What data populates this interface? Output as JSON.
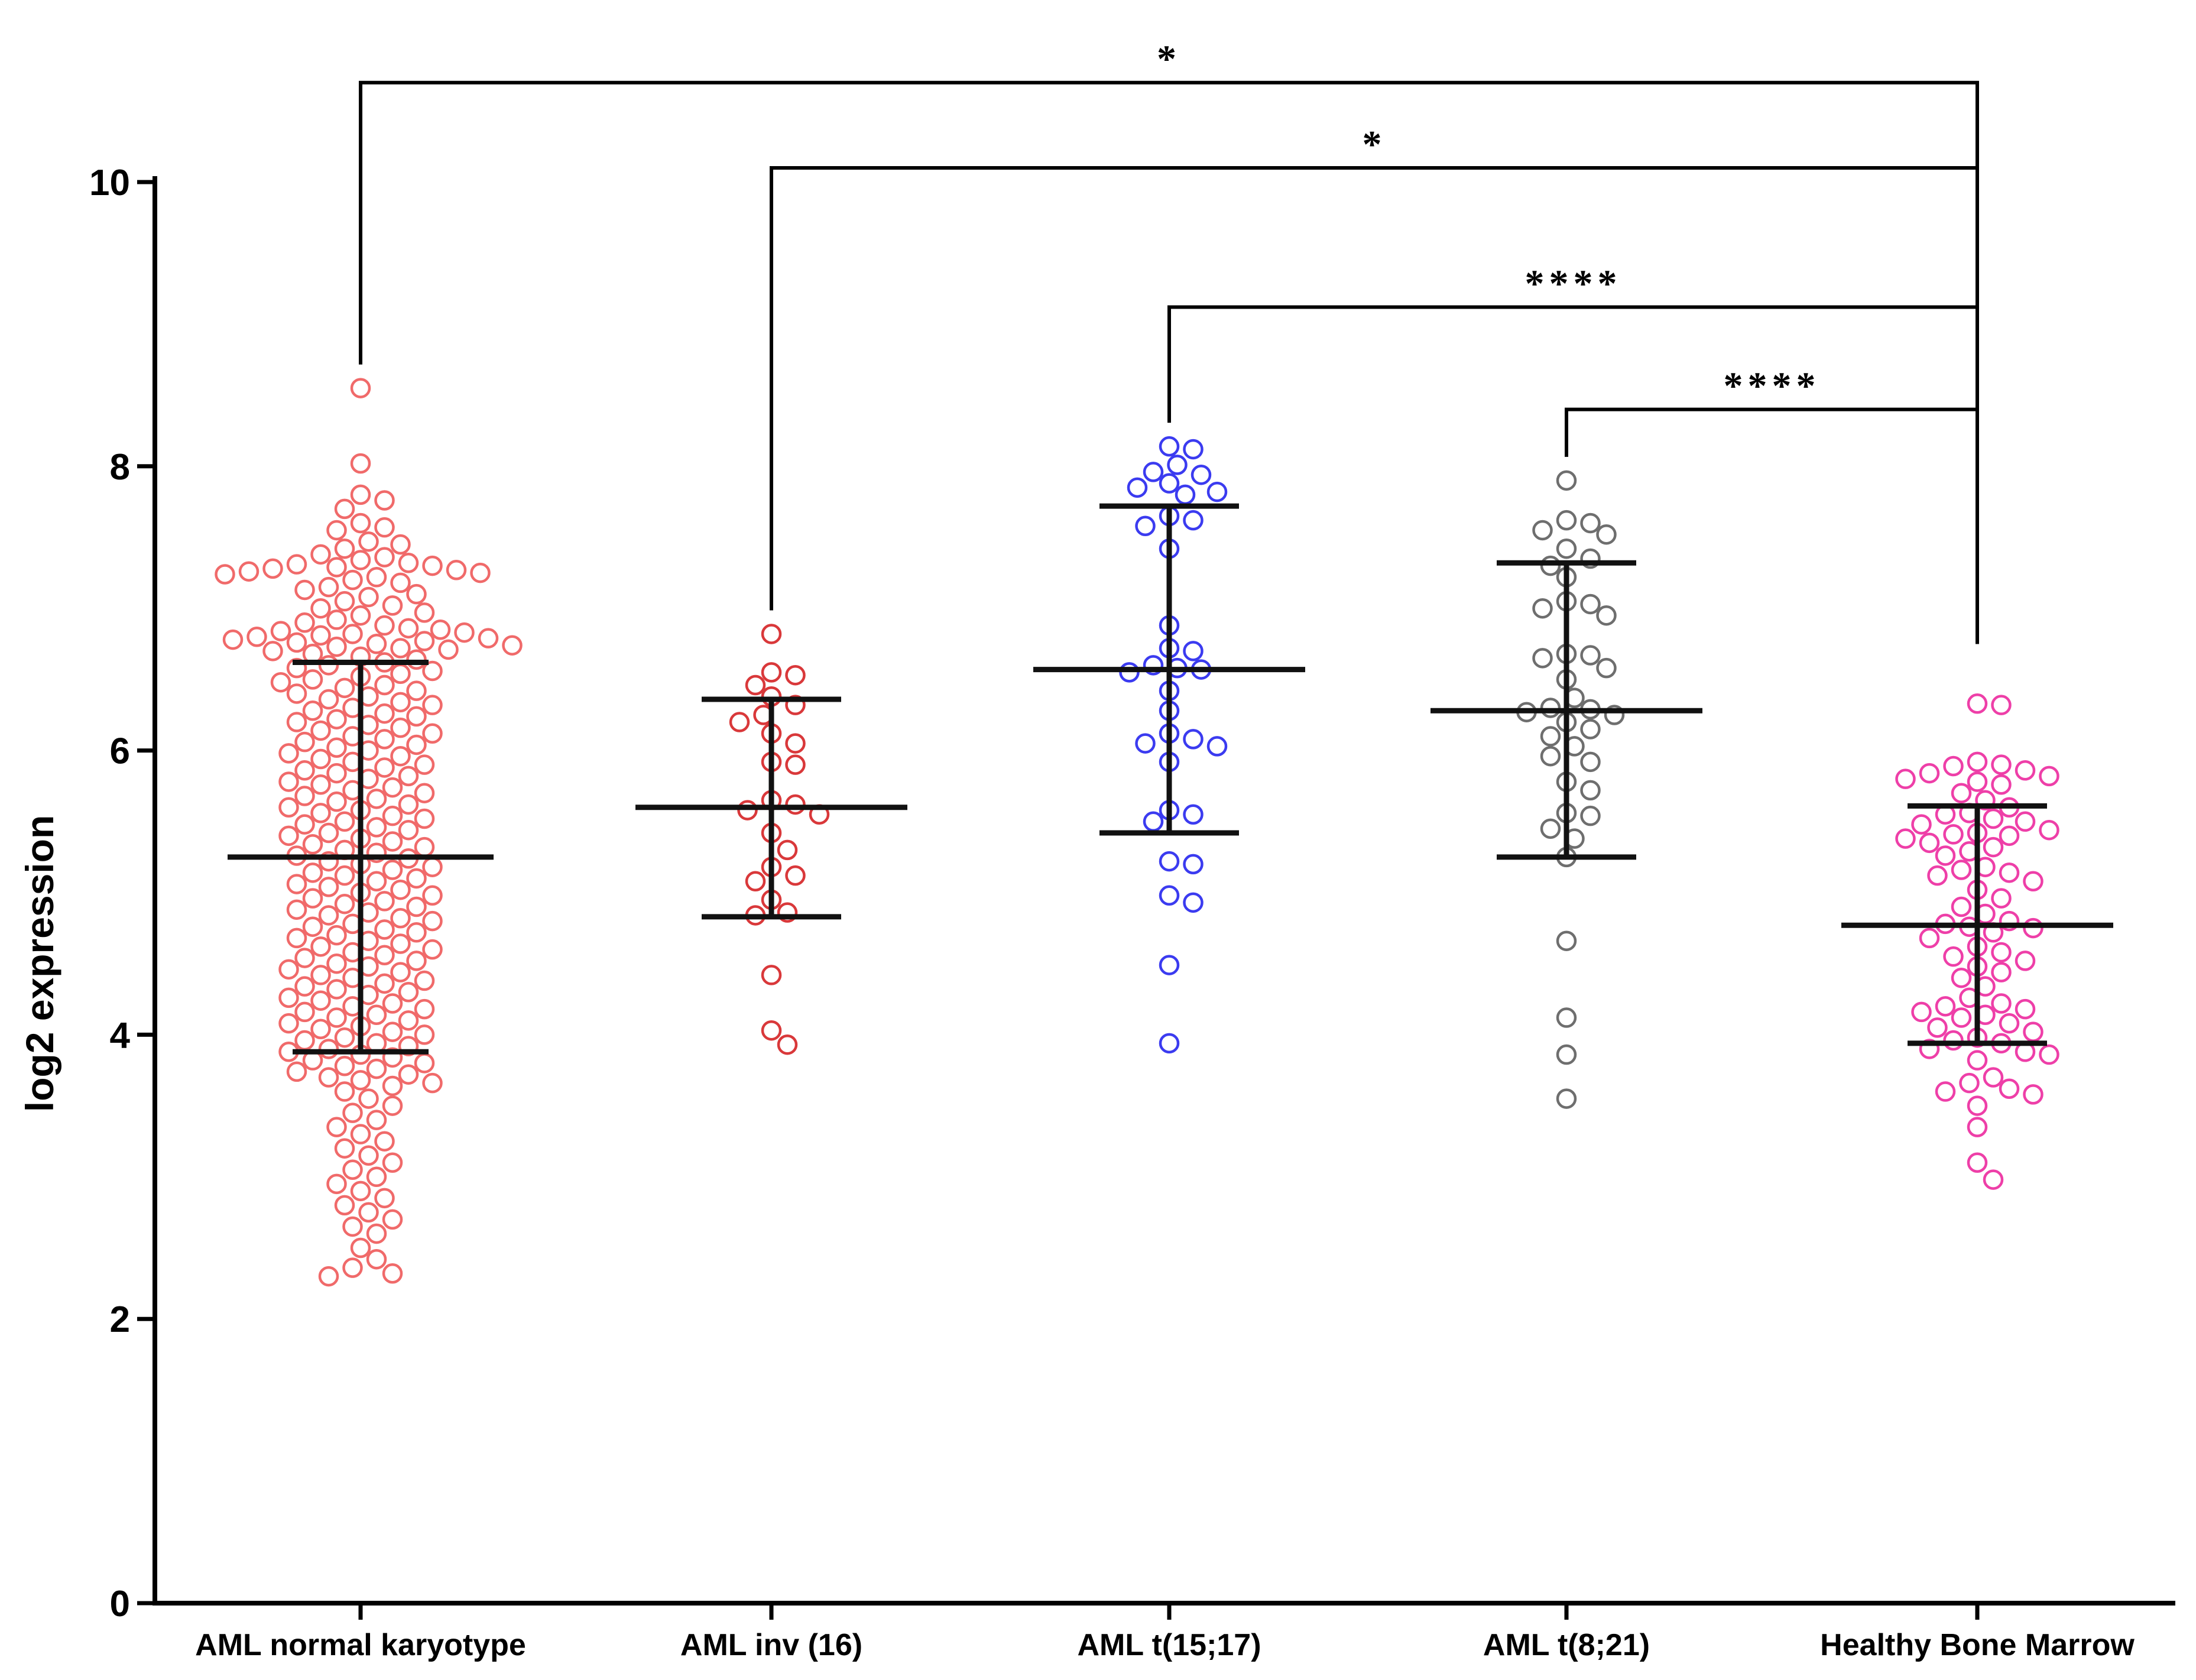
{
  "chart_data": {
    "type": "scatter",
    "title": "",
    "xlabel": "",
    "ylabel": "log2 expression",
    "ylim": [
      0,
      10
    ],
    "yticks": [
      0,
      2,
      4,
      6,
      8,
      10
    ],
    "ytick_labels": [
      "0",
      "2",
      "4",
      "6",
      "8",
      "10"
    ],
    "categories": [
      "AML normal karyotype",
      "AML inv (16)",
      "AML t(15;17)",
      "AML t(8;21)",
      "Healthy Bone Marrow"
    ],
    "series": [
      {
        "name": "AML normal karyotype",
        "color": "#f06a6a",
        "mean": 5.25,
        "sd_low": 3.88,
        "sd_high": 6.62,
        "values": [
          8.55,
          8.02,
          7.8,
          7.76,
          7.7,
          7.6,
          7.57,
          7.55,
          7.47,
          7.45,
          7.42,
          7.38,
          7.36,
          7.34,
          7.32,
          7.31,
          7.3,
          7.29,
          7.28,
          7.27,
          7.26,
          7.25,
          7.24,
          7.22,
          7.2,
          7.18,
          7.15,
          7.13,
          7.1,
          7.08,
          7.05,
          7.02,
          7.0,
          6.97,
          6.95,
          6.92,
          6.9,
          6.88,
          6.86,
          6.85,
          6.84,
          6.83,
          6.82,
          6.81,
          6.8,
          6.79,
          6.78,
          6.77,
          6.76,
          6.75,
          6.74,
          6.73,
          6.72,
          6.71,
          6.7,
          6.68,
          6.66,
          6.64,
          6.62,
          6.6,
          6.58,
          6.56,
          6.54,
          6.52,
          6.5,
          6.48,
          6.46,
          6.44,
          6.42,
          6.4,
          6.38,
          6.36,
          6.34,
          6.32,
          6.3,
          6.28,
          6.26,
          6.24,
          6.22,
          6.2,
          6.18,
          6.16,
          6.14,
          6.12,
          6.1,
          6.08,
          6.06,
          6.04,
          6.02,
          6.0,
          5.98,
          5.96,
          5.94,
          5.92,
          5.9,
          5.88,
          5.86,
          5.84,
          5.82,
          5.8,
          5.78,
          5.76,
          5.74,
          5.72,
          5.7,
          5.68,
          5.66,
          5.64,
          5.62,
          5.6,
          5.58,
          5.56,
          5.54,
          5.52,
          5.5,
          5.48,
          5.46,
          5.44,
          5.42,
          5.4,
          5.38,
          5.36,
          5.34,
          5.32,
          5.3,
          5.28,
          5.26,
          5.24,
          5.22,
          5.2,
          5.18,
          5.16,
          5.14,
          5.12,
          5.1,
          5.08,
          5.06,
          5.04,
          5.02,
          5.0,
          4.98,
          4.96,
          4.94,
          4.92,
          4.9,
          4.88,
          4.86,
          4.84,
          4.82,
          4.8,
          4.78,
          4.76,
          4.74,
          4.72,
          4.7,
          4.68,
          4.66,
          4.64,
          4.62,
          4.6,
          4.58,
          4.56,
          4.54,
          4.52,
          4.5,
          4.48,
          4.46,
          4.44,
          4.42,
          4.4,
          4.38,
          4.36,
          4.34,
          4.32,
          4.3,
          4.28,
          4.26,
          4.24,
          4.22,
          4.2,
          4.18,
          4.16,
          4.14,
          4.12,
          4.1,
          4.08,
          4.06,
          4.04,
          4.02,
          4.0,
          3.98,
          3.96,
          3.94,
          3.92,
          3.9,
          3.88,
          3.86,
          3.84,
          3.82,
          3.8,
          3.78,
          3.76,
          3.74,
          3.72,
          3.7,
          3.68,
          3.66,
          3.64,
          3.6,
          3.55,
          3.5,
          3.45,
          3.4,
          3.35,
          3.3,
          3.25,
          3.2,
          3.15,
          3.1,
          3.05,
          3.0,
          2.95,
          2.9,
          2.85,
          2.8,
          2.75,
          2.7,
          2.65,
          2.6,
          2.5,
          2.42,
          2.36,
          2.32,
          2.3
        ]
      },
      {
        "name": "AML inv (16)",
        "color": "#d9383a",
        "mean": 5.6,
        "sd_low": 4.83,
        "sd_high": 6.36,
        "values": [
          6.82,
          6.55,
          6.53,
          6.46,
          6.38,
          6.32,
          6.25,
          6.2,
          6.12,
          6.05,
          5.92,
          5.9,
          5.65,
          5.62,
          5.58,
          5.55,
          5.42,
          5.3,
          5.18,
          5.12,
          5.08,
          4.95,
          4.86,
          4.84,
          4.42,
          4.03,
          3.93
        ]
      },
      {
        "name": "AML t(15;17)",
        "color": "#3b3bf0",
        "mean": 6.57,
        "sd_low": 5.42,
        "sd_high": 7.72,
        "values": [
          8.14,
          8.12,
          8.01,
          7.96,
          7.94,
          7.88,
          7.85,
          7.82,
          7.8,
          7.65,
          7.62,
          7.58,
          7.42,
          6.88,
          6.72,
          6.7,
          6.6,
          6.58,
          6.57,
          6.55,
          6.42,
          6.28,
          6.12,
          6.08,
          6.05,
          6.03,
          5.92,
          5.58,
          5.55,
          5.5,
          5.22,
          5.2,
          4.98,
          4.93,
          4.49,
          3.94
        ]
      },
      {
        "name": "AML t(8;21)",
        "color": "#6e6e6e",
        "mean": 6.28,
        "sd_low": 5.25,
        "sd_high": 7.32,
        "values": [
          7.9,
          7.62,
          7.6,
          7.55,
          7.52,
          7.42,
          7.35,
          7.3,
          7.22,
          7.05,
          7.03,
          7.0,
          6.95,
          6.68,
          6.67,
          6.65,
          6.58,
          6.5,
          6.37,
          6.3,
          6.29,
          6.27,
          6.25,
          6.2,
          6.15,
          6.1,
          6.03,
          5.96,
          5.92,
          5.78,
          5.72,
          5.56,
          5.54,
          5.45,
          5.38,
          5.25,
          4.66,
          4.12,
          3.86,
          3.55
        ]
      },
      {
        "name": "Healthy Bone Marrow",
        "color": "#ee3fa8",
        "mean": 4.77,
        "sd_low": 3.94,
        "sd_high": 5.61,
        "values": [
          6.33,
          6.32,
          5.92,
          5.9,
          5.89,
          5.86,
          5.84,
          5.82,
          5.8,
          5.78,
          5.76,
          5.7,
          5.65,
          5.6,
          5.56,
          5.55,
          5.52,
          5.5,
          5.48,
          5.44,
          5.42,
          5.41,
          5.4,
          5.38,
          5.35,
          5.32,
          5.29,
          5.26,
          5.18,
          5.16,
          5.14,
          5.12,
          5.08,
          5.02,
          4.96,
          4.9,
          4.85,
          4.8,
          4.78,
          4.76,
          4.75,
          4.72,
          4.68,
          4.62,
          4.58,
          4.55,
          4.52,
          4.48,
          4.44,
          4.4,
          4.34,
          4.26,
          4.22,
          4.2,
          4.18,
          4.16,
          4.14,
          4.12,
          4.08,
          4.05,
          4.02,
          3.98,
          3.96,
          3.94,
          3.9,
          3.88,
          3.86,
          3.82,
          3.7,
          3.66,
          3.62,
          3.6,
          3.58,
          3.5,
          3.35,
          3.1,
          2.98
        ]
      }
    ],
    "significance": [
      {
        "from": "AML normal karyotype",
        "to": "Healthy Bone Marrow",
        "label": "*",
        "y": 10.7
      },
      {
        "from": "AML inv (16)",
        "to": "Healthy Bone Marrow",
        "label": "*",
        "y": 10.1
      },
      {
        "from": "AML t(15;17)",
        "to": "Healthy Bone Marrow",
        "label": "****",
        "y": 9.12
      },
      {
        "from": "AML t(8;21)",
        "to": "Healthy Bone Marrow",
        "label": "****",
        "y": 8.4
      }
    ]
  }
}
